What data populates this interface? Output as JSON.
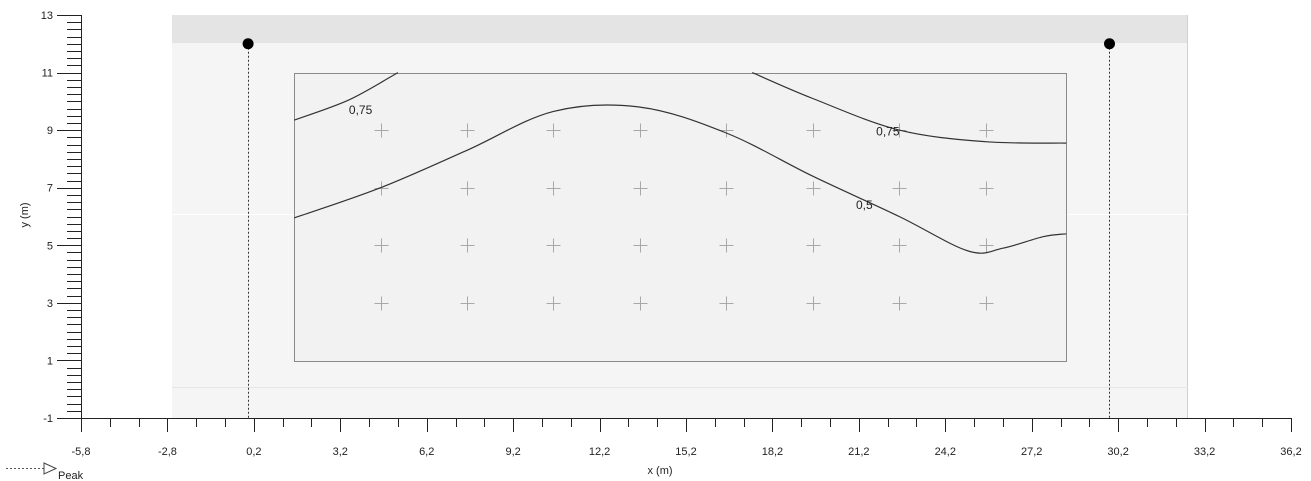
{
  "chart_data": {
    "type": "line",
    "xlabel": "x (m)",
    "ylabel": "y (m)",
    "xlim": [
      -5.8,
      36.2
    ],
    "ylim": [
      -1,
      13
    ],
    "x_tick_labels": [
      "-5,8",
      "-2,8",
      "0,2",
      "3,2",
      "6,2",
      "9,2",
      "12,2",
      "15,2",
      "18,2",
      "21,2",
      "24,2",
      "27,2",
      "30,2",
      "33,2",
      "36,2"
    ],
    "x_ticks": [
      -5.8,
      -2.8,
      0.2,
      3.2,
      6.2,
      9.2,
      12.2,
      15.2,
      18.2,
      21.2,
      24.2,
      27.2,
      30.2,
      33.2,
      36.2
    ],
    "y_tick_labels": [
      "-1",
      "1",
      "3",
      "5",
      "7",
      "9",
      "11",
      "13"
    ],
    "y_ticks": [
      -1,
      1,
      3,
      5,
      7,
      9,
      11,
      13
    ],
    "room_x": [
      -2.7,
      33.0
    ],
    "room_y": [
      0.0,
      13.0
    ],
    "room_band_y": [
      12.0,
      13.0
    ],
    "calc_area_x": [
      1.6,
      28.4
    ],
    "calc_area_y": [
      1.0,
      11.0
    ],
    "grid_points_x": [
      4.6,
      7.6,
      10.6,
      13.6,
      16.6,
      19.6,
      22.6,
      25.6
    ],
    "grid_points_y": [
      3.0,
      5.0,
      7.0,
      9.0
    ],
    "luminaires": [
      {
        "x": 0.0,
        "y": 12.0
      },
      {
        "x": 29.9,
        "y": 12.0
      }
    ],
    "contours": [
      {
        "level": "0,75",
        "points": [
          [
            1.6,
            9.35
          ],
          [
            3.5,
            10.05
          ],
          [
            5.2,
            11.0
          ]
        ],
        "label_pos": [
          3.5,
          9.7
        ]
      },
      {
        "level": "0,5",
        "points": [
          [
            1.6,
            5.95
          ],
          [
            4.6,
            7.0
          ],
          [
            7.6,
            8.3
          ],
          [
            10.6,
            9.65
          ],
          [
            13.6,
            9.8
          ],
          [
            16.6,
            8.9
          ],
          [
            19.6,
            7.4
          ],
          [
            22.6,
            6.0
          ],
          [
            25.0,
            4.8
          ],
          [
            26.2,
            4.9
          ],
          [
            27.6,
            5.3
          ],
          [
            28.4,
            5.4
          ]
        ],
        "label_pos": [
          21.1,
          6.4
        ]
      },
      {
        "level": "0,75",
        "points": [
          [
            17.5,
            11.0
          ],
          [
            19.6,
            10.1
          ],
          [
            22.6,
            9.0
          ],
          [
            25.6,
            8.6
          ],
          [
            28.4,
            8.55
          ]
        ],
        "label_pos": [
          21.8,
          8.95
        ]
      }
    ],
    "legend": [
      {
        "label": "Peak"
      }
    ]
  },
  "colors": {
    "room_fill": "#f5f5f5",
    "room_band": "#e4e4e4",
    "room_border": "#c8c8c8",
    "calc_area_fill": "#f2f2f2",
    "calc_area_border": "#8a8a8a",
    "contour": "#333333",
    "grid_cross": "#a8a8a8",
    "axis": "#222222"
  }
}
